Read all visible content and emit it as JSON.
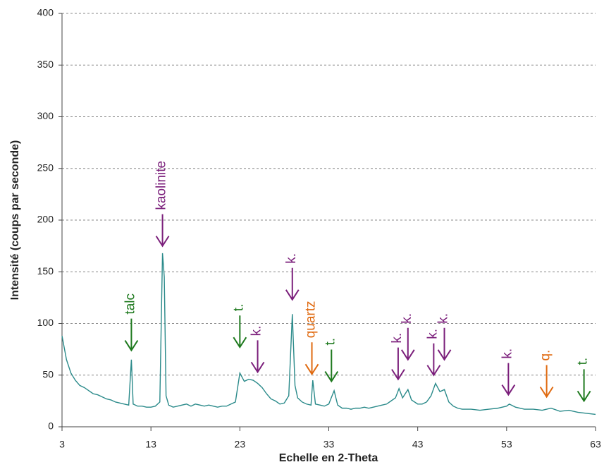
{
  "chart_data": {
    "type": "line",
    "xlabel": "Echelle en 2-Theta",
    "ylabel": "Intensité (coups par seconde)",
    "xlim": [
      3,
      63
    ],
    "xticks": [
      3,
      13,
      23,
      33,
      43,
      53,
      63
    ],
    "ylim": [
      0,
      400
    ],
    "yticks": [
      0,
      50,
      100,
      150,
      200,
      250,
      300,
      350,
      400
    ],
    "grid": true,
    "series": [
      {
        "color": "#2a8a8a",
        "x": [
          3,
          3.5,
          4,
          4.5,
          5,
          5.5,
          6,
          6.5,
          7,
          7.5,
          8,
          8.5,
          9,
          9.5,
          10,
          10.5,
          10.8,
          11,
          11.5,
          12,
          12.5,
          13,
          13.5,
          14,
          14.3,
          14.5,
          14.7,
          15,
          15.5,
          16,
          16.5,
          17,
          17.5,
          18,
          18.5,
          19,
          19.5,
          20,
          20.5,
          21,
          21.5,
          22,
          22.5,
          23,
          23.5,
          24,
          24.5,
          25,
          25.5,
          26,
          26.5,
          27,
          27.5,
          28,
          28.5,
          28.9,
          29.2,
          29.5,
          30,
          30.5,
          31,
          31.2,
          31.5,
          32,
          32.5,
          33,
          33.6,
          34,
          34.5,
          35,
          35.5,
          36,
          36.5,
          37,
          37.5,
          38,
          38.5,
          39,
          39.5,
          40,
          40.5,
          40.9,
          41.3,
          41.9,
          42.3,
          43,
          43.5,
          44,
          44.5,
          45,
          45.5,
          46,
          46.5,
          47,
          47.5,
          48,
          49,
          50,
          51,
          52,
          53,
          53.3,
          54,
          55,
          56,
          57,
          58,
          59,
          60,
          61,
          62,
          63
        ],
        "values": [
          88,
          65,
          52,
          45,
          40,
          38,
          35,
          32,
          31,
          29,
          27,
          26,
          24,
          23,
          22,
          21,
          65,
          22,
          20,
          20,
          19,
          19,
          20,
          24,
          168,
          145,
          30,
          21,
          19,
          20,
          21,
          22,
          20,
          22,
          21,
          20,
          21,
          20,
          19,
          20,
          20,
          22,
          24,
          52,
          44,
          46,
          45,
          42,
          38,
          32,
          27,
          25,
          22,
          23,
          30,
          109,
          40,
          28,
          24,
          22,
          21,
          45,
          22,
          21,
          20,
          22,
          35,
          21,
          18,
          18,
          17,
          18,
          18,
          19,
          18,
          19,
          20,
          21,
          22,
          25,
          28,
          37,
          28,
          36,
          26,
          22,
          22,
          24,
          30,
          42,
          34,
          36,
          24,
          20,
          18,
          17,
          17,
          16,
          17,
          18,
          20,
          22,
          19,
          17,
          17,
          16,
          18,
          15,
          16,
          14,
          13,
          12
        ]
      }
    ],
    "annotations": [
      {
        "text": "talc",
        "x": 10.8,
        "y": 74,
        "color": "#1f7a1f"
      },
      {
        "text": "kaolinite",
        "x": 14.3,
        "y": 175,
        "color": "#7b1f7b"
      },
      {
        "text": "t.",
        "x": 23,
        "y": 77,
        "color": "#1f7a1f"
      },
      {
        "text": "k.",
        "x": 25,
        "y": 53,
        "color": "#7b1f7b"
      },
      {
        "text": "k.",
        "x": 28.9,
        "y": 123,
        "color": "#7b1f7b"
      },
      {
        "text": "quartz",
        "x": 31.1,
        "y": 51,
        "color": "#e06a10"
      },
      {
        "text": "t.",
        "x": 33.3,
        "y": 44,
        "color": "#1f7a1f"
      },
      {
        "text": "k.",
        "x": 40.8,
        "y": 46,
        "color": "#7b1f7b"
      },
      {
        "text": "k.",
        "x": 41.9,
        "y": 65,
        "color": "#7b1f7b"
      },
      {
        "text": "k.",
        "x": 44.8,
        "y": 50,
        "color": "#7b1f7b"
      },
      {
        "text": "k.",
        "x": 46,
        "y": 65,
        "color": "#7b1f7b"
      },
      {
        "text": "k.",
        "x": 53.2,
        "y": 31,
        "color": "#7b1f7b"
      },
      {
        "text": "q.",
        "x": 57.5,
        "y": 29,
        "color": "#e06a10"
      },
      {
        "text": "t.",
        "x": 61.7,
        "y": 25,
        "color": "#1f7a1f"
      }
    ]
  }
}
